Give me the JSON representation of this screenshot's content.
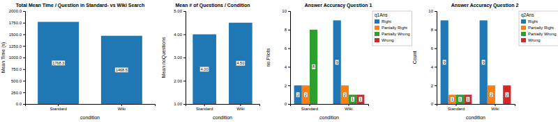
{
  "chart_data": [
    {
      "type": "bar",
      "title": "Total Mean Time / Question in Standard- vs Wiki Search",
      "xlabel": "condition",
      "ylabel": "Mean Time (s)",
      "categories": [
        "Standard",
        "Wiki"
      ],
      "values": [
        1768.3,
        1468.5
      ],
      "ylim": [
        0,
        2000
      ],
      "yticks": [
        {
          "value": 0,
          "label": "0.0"
        },
        {
          "value": 250,
          "label": "250.0"
        },
        {
          "value": 500,
          "label": "500.0"
        },
        {
          "value": 750,
          "label": "750.0"
        },
        {
          "value": 1000,
          "label": "1000.0"
        },
        {
          "value": 1250,
          "label": "1250.0"
        },
        {
          "value": 1500,
          "label": "1500.0"
        },
        {
          "value": 1750,
          "label": "1750.0"
        },
        {
          "value": 2000,
          "label": "2000.0"
        }
      ],
      "data_labels": true
    },
    {
      "type": "bar",
      "title": "Mean # of Questions / Condition",
      "xlabel": "condition",
      "ylabel": "Mean noQuestions",
      "categories": [
        "Standard",
        "Wiki"
      ],
      "values": [
        4.0,
        4.5
      ],
      "value_labels": [
        "4.00",
        "4.50"
      ],
      "ylim": [
        1,
        5
      ],
      "yticks": [
        {
          "value": 1,
          "label": "1.00"
        },
        {
          "value": 2,
          "label": "2.00"
        },
        {
          "value": 3,
          "label": "3.00"
        },
        {
          "value": 4,
          "label": "4.00"
        },
        {
          "value": 5,
          "label": "5.00"
        }
      ],
      "data_labels": true
    },
    {
      "type": "bar",
      "title": "Answer Accuracy Question 1",
      "xlabel": "condition",
      "ylabel": "no.Pilots",
      "categories": [
        "Standard",
        "Wiki"
      ],
      "series": [
        {
          "name": "Right",
          "values": [
            2,
            9
          ]
        },
        {
          "name": "Partially Right",
          "values": [
            2,
            2
          ]
        },
        {
          "name": "Partially Wrong",
          "values": [
            8,
            1
          ]
        },
        {
          "name": "Wrong",
          "values": [
            0,
            1
          ]
        }
      ],
      "legend_title": "q1Ans",
      "legend": "right",
      "ylim": [
        0,
        10
      ],
      "yticks": [
        0,
        2,
        4,
        6,
        8,
        10
      ],
      "data_labels": true
    },
    {
      "type": "bar",
      "title": "Answer Accuracy Question 2",
      "xlabel": "condition",
      "ylabel": "Count",
      "categories": [
        "Standard",
        "Wiki"
      ],
      "series": [
        {
          "name": "Right",
          "values": [
            9,
            9
          ]
        },
        {
          "name": "Partially Right",
          "values": [
            1,
            2
          ]
        },
        {
          "name": "Partially Wrong",
          "values": [
            1,
            0
          ]
        },
        {
          "name": "Wrong",
          "values": [
            1,
            2
          ]
        }
      ],
      "legend_title": "q2Ans",
      "legend": "right",
      "ylim": [
        0,
        10
      ],
      "yticks": [
        0,
        2,
        4,
        6,
        8,
        10
      ],
      "data_labels": true
    }
  ]
}
